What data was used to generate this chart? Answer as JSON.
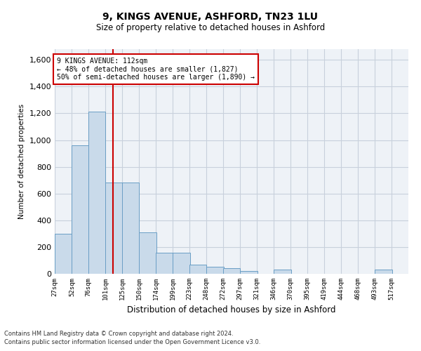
{
  "title1": "9, KINGS AVENUE, ASHFORD, TN23 1LU",
  "title2": "Size of property relative to detached houses in Ashford",
  "xlabel": "Distribution of detached houses by size in Ashford",
  "ylabel": "Number of detached properties",
  "annotation_line1": "9 KINGS AVENUE: 112sqm",
  "annotation_line2": "← 48% of detached houses are smaller (1,827)",
  "annotation_line3": "50% of semi-detached houses are larger (1,890) →",
  "property_size": 112,
  "bar_color": "#c9daea",
  "bar_edge_color": "#6a9ec5",
  "red_line_color": "#cc0000",
  "annotation_box_edge": "#cc0000",
  "grid_color": "#c8d0dc",
  "background_color": "#eef2f7",
  "footnote1": "Contains HM Land Registry data © Crown copyright and database right 2024.",
  "footnote2": "Contains public sector information licensed under the Open Government Licence v3.0.",
  "bins_left": [
    27,
    52,
    76,
    101,
    125,
    150,
    174,
    199,
    223,
    248,
    272,
    297,
    321,
    346,
    370,
    395,
    419,
    444,
    468,
    493
  ],
  "bin_width": 25,
  "bar_heights": [
    300,
    960,
    1215,
    680,
    680,
    310,
    160,
    160,
    70,
    50,
    40,
    20,
    0,
    30,
    0,
    0,
    0,
    0,
    0,
    30
  ],
  "ylim": [
    0,
    1680
  ],
  "yticks": [
    0,
    200,
    400,
    600,
    800,
    1000,
    1200,
    1400,
    1600
  ],
  "xtick_labels": [
    "27sqm",
    "52sqm",
    "76sqm",
    "101sqm",
    "125sqm",
    "150sqm",
    "174sqm",
    "199sqm",
    "223sqm",
    "248sqm",
    "272sqm",
    "297sqm",
    "321sqm",
    "346sqm",
    "370sqm",
    "395sqm",
    "419sqm",
    "444sqm",
    "468sqm",
    "493sqm",
    "517sqm"
  ],
  "xlim_left": 27,
  "xlim_right": 542
}
